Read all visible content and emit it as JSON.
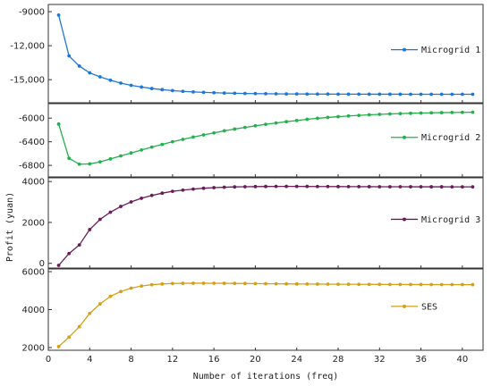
{
  "chart_data": {
    "type": "line",
    "xlabel": "Number of iterations (freq)",
    "ylabel": "Profit (yuan)",
    "x_ticks": [
      0,
      4,
      8,
      12,
      16,
      20,
      24,
      28,
      32,
      36,
      40
    ],
    "xlim": [
      0,
      42
    ],
    "x": [
      1,
      2,
      3,
      4,
      5,
      6,
      7,
      8,
      9,
      10,
      11,
      12,
      13,
      14,
      15,
      16,
      17,
      18,
      19,
      20,
      21,
      22,
      23,
      24,
      25,
      26,
      27,
      28,
      29,
      30,
      31,
      32,
      33,
      34,
      35,
      36,
      37,
      38,
      39,
      40,
      41
    ],
    "panels": [
      {
        "series_name": "Microgrid 1",
        "color": "#1f77d4",
        "ylim": [
          -16800,
          -8600
        ],
        "yticks": [
          -9000,
          -12000,
          -15000
        ],
        "ytick_labels": [
          "-9000",
          "-12,000",
          "-15,000"
        ],
        "values": [
          -9300,
          -12900,
          -13800,
          -14400,
          -14750,
          -15050,
          -15300,
          -15500,
          -15650,
          -15780,
          -15880,
          -15960,
          -16030,
          -16080,
          -16120,
          -16150,
          -16180,
          -16200,
          -16220,
          -16230,
          -16240,
          -16250,
          -16255,
          -16260,
          -16265,
          -16270,
          -16272,
          -16275,
          -16277,
          -16280,
          -16281,
          -16282,
          -16283,
          -16284,
          -16285,
          -16286,
          -16287,
          -16288,
          -16289,
          -16290,
          -16290
        ]
      },
      {
        "series_name": "Microgrid 2",
        "color": "#22b14c",
        "ylim": [
          -6950,
          -5800
        ],
        "yticks": [
          -6000,
          -6400,
          -6800
        ],
        "ytick_labels": [
          "-6000",
          "-6400",
          "-6800"
        ],
        "values": [
          -6100,
          -6680,
          -6780,
          -6775,
          -6740,
          -6690,
          -6640,
          -6590,
          -6540,
          -6490,
          -6445,
          -6400,
          -6360,
          -6320,
          -6285,
          -6250,
          -6215,
          -6185,
          -6158,
          -6130,
          -6105,
          -6082,
          -6060,
          -6040,
          -6020,
          -6003,
          -5988,
          -5975,
          -5963,
          -5953,
          -5944,
          -5936,
          -5929,
          -5923,
          -5918,
          -5914,
          -5910,
          -5907,
          -5904,
          -5902,
          -5900
        ]
      },
      {
        "series_name": "Microgrid 3",
        "color": "#6a1b5a",
        "ylim": [
          -100,
          4050
        ],
        "yticks": [
          4000,
          2000,
          0
        ],
        "ytick_labels": [
          "4000",
          "2000",
          "0"
        ],
        "values": [
          -100,
          480,
          900,
          1650,
          2150,
          2500,
          2780,
          3000,
          3180,
          3320,
          3430,
          3520,
          3580,
          3630,
          3670,
          3700,
          3720,
          3735,
          3745,
          3752,
          3757,
          3760,
          3760,
          3760,
          3758,
          3756,
          3754,
          3752,
          3750,
          3748,
          3746,
          3745,
          3744,
          3743,
          3742,
          3742,
          3741,
          3741,
          3740,
          3740,
          3740
        ]
      },
      {
        "series_name": "SES",
        "color": "#d4a017",
        "ylim": [
          2000,
          6000
        ],
        "yticks": [
          6000,
          4000,
          2000
        ],
        "ytick_labels": [
          "6000",
          "4000",
          "2000"
        ],
        "values": [
          2050,
          2550,
          3100,
          3800,
          4300,
          4700,
          4950,
          5130,
          5240,
          5310,
          5350,
          5375,
          5385,
          5390,
          5390,
          5388,
          5385,
          5380,
          5375,
          5370,
          5365,
          5360,
          5355,
          5350,
          5347,
          5343,
          5340,
          5337,
          5334,
          5331,
          5329,
          5327,
          5325,
          5323,
          5321,
          5320,
          5318,
          5317,
          5316,
          5315,
          5314
        ]
      }
    ]
  }
}
